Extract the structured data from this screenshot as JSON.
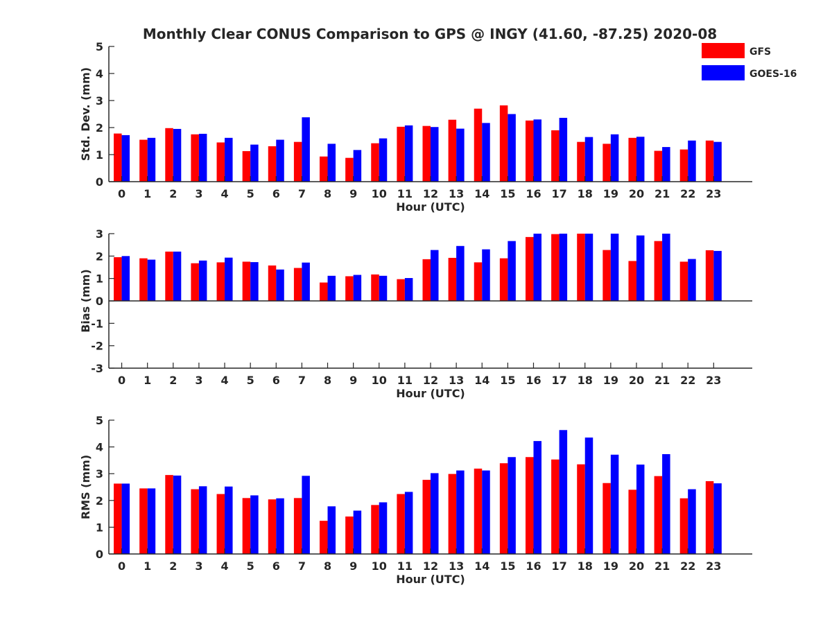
{
  "title": "Monthly Clear CONUS Comparison to GPS @ INGY (41.60, -87.25) 2020-08",
  "legend": [
    {
      "label": "GFS",
      "color": "#ff0000"
    },
    {
      "label": "GOES-16",
      "color": "#0000ff"
    }
  ],
  "chart_data": [
    {
      "type": "bar",
      "categories": [
        "0",
        "1",
        "2",
        "3",
        "4",
        "5",
        "6",
        "7",
        "8",
        "9",
        "10",
        "11",
        "12",
        "13",
        "14",
        "15",
        "16",
        "17",
        "18",
        "19",
        "20",
        "21",
        "22",
        "23"
      ],
      "xlabel": "Hour (UTC)",
      "ylabel": "Std. Dev. (mm)",
      "ylim": [
        0,
        5
      ],
      "yticks": [
        "0",
        "1",
        "2",
        "3",
        "4",
        "5"
      ],
      "series": [
        {
          "name": "GFS",
          "color": "#ff0000",
          "values": [
            1.78,
            1.55,
            1.98,
            1.75,
            1.45,
            1.13,
            1.31,
            1.47,
            0.93,
            0.88,
            1.42,
            2.03,
            2.06,
            2.29,
            2.7,
            2.82,
            2.26,
            1.9,
            1.47,
            1.4,
            1.62,
            1.14,
            1.19,
            1.52
          ]
        },
        {
          "name": "GOES-16",
          "color": "#0000ff",
          "values": [
            1.72,
            1.62,
            1.95,
            1.77,
            1.62,
            1.37,
            1.55,
            2.38,
            1.4,
            1.17,
            1.6,
            2.08,
            2.02,
            1.96,
            2.17,
            2.5,
            2.3,
            2.36,
            1.65,
            1.75,
            1.66,
            1.28,
            1.52,
            1.47
          ]
        }
      ]
    },
    {
      "type": "bar",
      "categories": [
        "0",
        "1",
        "2",
        "3",
        "4",
        "5",
        "6",
        "7",
        "8",
        "9",
        "10",
        "11",
        "12",
        "13",
        "14",
        "15",
        "16",
        "17",
        "18",
        "19",
        "20",
        "21",
        "22",
        "23"
      ],
      "xlabel": "Hour (UTC)",
      "ylabel": "Bias (mm)",
      "ylim": [
        -3,
        3
      ],
      "yticks": [
        "-3",
        "-2",
        "-1",
        "0",
        "1",
        "2",
        "3"
      ],
      "series": [
        {
          "name": "GFS",
          "color": "#ff0000",
          "values": [
            1.95,
            1.9,
            2.2,
            1.68,
            1.72,
            1.75,
            1.58,
            1.47,
            0.82,
            1.1,
            1.18,
            0.97,
            1.86,
            1.92,
            1.72,
            1.9,
            2.85,
            2.98,
            3.0,
            2.27,
            1.78,
            2.67,
            1.75,
            2.26
          ]
        },
        {
          "name": "GOES-16",
          "color": "#0000ff",
          "values": [
            2.0,
            1.84,
            2.2,
            1.8,
            1.93,
            1.73,
            1.4,
            1.71,
            1.12,
            1.16,
            1.12,
            1.02,
            2.27,
            2.45,
            2.3,
            2.67,
            3.0,
            3.0,
            3.0,
            3.0,
            2.92,
            3.0,
            1.87,
            2.23
          ]
        }
      ]
    },
    {
      "type": "bar",
      "categories": [
        "0",
        "1",
        "2",
        "3",
        "4",
        "5",
        "6",
        "7",
        "8",
        "9",
        "10",
        "11",
        "12",
        "13",
        "14",
        "15",
        "16",
        "17",
        "18",
        "19",
        "20",
        "21",
        "22",
        "23"
      ],
      "xlabel": "Hour (UTC)",
      "ylabel": "RMS (mm)",
      "ylim": [
        0,
        5
      ],
      "yticks": [
        "0",
        "1",
        "2",
        "3",
        "4",
        "5"
      ],
      "series": [
        {
          "name": "GFS",
          "color": "#ff0000",
          "values": [
            2.63,
            2.45,
            2.95,
            2.42,
            2.24,
            2.09,
            2.04,
            2.09,
            1.24,
            1.4,
            1.83,
            2.24,
            2.77,
            2.99,
            3.19,
            3.39,
            3.62,
            3.53,
            3.35,
            2.65,
            2.4,
            2.91,
            2.08,
            2.72
          ]
        },
        {
          "name": "GOES-16",
          "color": "#0000ff",
          "values": [
            2.63,
            2.45,
            2.93,
            2.53,
            2.52,
            2.19,
            2.08,
            2.92,
            1.78,
            1.62,
            1.93,
            2.32,
            3.02,
            3.12,
            3.12,
            3.62,
            4.22,
            4.63,
            4.35,
            3.71,
            3.34,
            3.73,
            2.42,
            2.64
          ]
        }
      ]
    }
  ]
}
